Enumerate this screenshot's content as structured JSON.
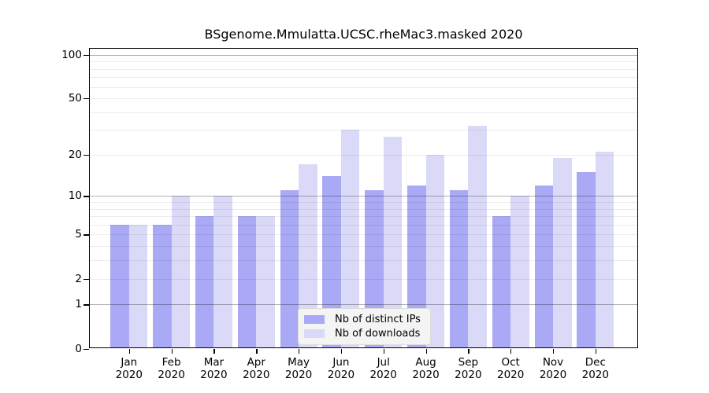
{
  "title": "BSgenome.Mmulatta.UCSC.rheMac3.masked 2020",
  "legend": {
    "items": [
      {
        "label": "Nb of distinct IPs"
      },
      {
        "label": "Nb of downloads"
      }
    ]
  },
  "colors": {
    "distinct_ips_bar": "#a9a9f5",
    "downloads_bar": "#dadaf8",
    "legend_background": "#f4f4f4",
    "axis": "#000000"
  },
  "chart_data": {
    "type": "bar",
    "title": "BSgenome.Mmulatta.UCSC.rheMac3.masked 2020",
    "categories": [
      "Jan",
      "Feb",
      "Mar",
      "Apr",
      "May",
      "Jun",
      "Jul",
      "Aug",
      "Sep",
      "Oct",
      "Nov",
      "Dec"
    ],
    "year_label": "2020",
    "series": [
      {
        "name": "Nb of distinct IPs",
        "color": "#a9a9f5",
        "values": [
          6,
          6,
          7,
          7,
          11,
          14,
          11,
          12,
          11,
          7,
          12,
          15
        ]
      },
      {
        "name": "Nb of downloads",
        "color": "#dadaf8",
        "values": [
          6,
          10,
          10,
          7,
          17,
          30,
          27,
          20,
          32,
          10,
          19,
          21
        ]
      }
    ],
    "xlabel": "",
    "ylabel": "",
    "y_axis": {
      "scale": "log1p",
      "tick_labels": [
        0,
        1,
        2,
        5,
        10,
        20,
        50,
        100
      ],
      "minor_gridlines": [
        2,
        3,
        4,
        5,
        6,
        7,
        8,
        9,
        20,
        30,
        40,
        50,
        60,
        70,
        80,
        90
      ],
      "major_gridlines": [
        1,
        10,
        100
      ],
      "ylim": [
        0,
        100
      ]
    },
    "grid": true,
    "legend_position": "inside-bottom-center"
  }
}
